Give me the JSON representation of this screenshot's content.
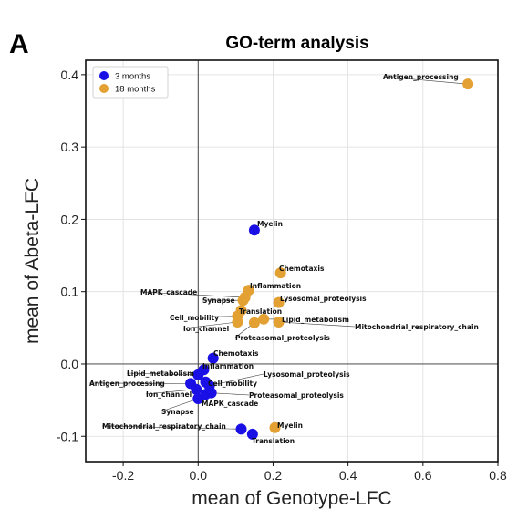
{
  "panel_letter": "A",
  "chart_data": {
    "type": "scatter",
    "title": "GO-term analysis",
    "xlabel": "mean of Genotype-LFC",
    "ylabel": "mean of Abeta-LFC",
    "xlim": [
      -0.3,
      0.8
    ],
    "ylim": [
      -0.135,
      0.42
    ],
    "xticks": [
      -0.2,
      0.0,
      0.2,
      0.4,
      0.6,
      0.8
    ],
    "yticks": [
      -0.1,
      0.0,
      0.1,
      0.2,
      0.3,
      0.4
    ],
    "xtick_labels": [
      "-0.2",
      "0.0",
      "0.2",
      "0.4",
      "0.6",
      "0.8"
    ],
    "ytick_labels": [
      "-0.1",
      "0.0",
      "0.1",
      "0.2",
      "0.3",
      "0.4"
    ],
    "grid": true,
    "zero_lines": true,
    "legend_position": "top-left",
    "series": [
      {
        "name": "3 months",
        "color": "#1a10e6",
        "points": [
          {
            "label": "Myelin",
            "x": 0.15,
            "y": 0.185
          },
          {
            "label": "Chemotaxis",
            "x": 0.04,
            "y": 0.008
          },
          {
            "label": "Inflammation",
            "x": 0.015,
            "y": -0.008
          },
          {
            "label": "Lipid_metabolism",
            "x": 0.0,
            "y": -0.015
          },
          {
            "label": "Antigen_processing",
            "x": -0.02,
            "y": -0.027
          },
          {
            "label": "Cell_mobility",
            "x": 0.02,
            "y": -0.025
          },
          {
            "label": "Lysosomal_proteolysis",
            "x": 0.03,
            "y": -0.03
          },
          {
            "label": "Ion_channel",
            "x": -0.005,
            "y": -0.035
          },
          {
            "label": "Proteasomal_proteolysis",
            "x": 0.035,
            "y": -0.04
          },
          {
            "label": "MAPK_cascade",
            "x": 0.02,
            "y": -0.042
          },
          {
            "label": "Synapse",
            "x": 0.0,
            "y": -0.048
          },
          {
            "label": "Mitochondrial_respiratory_chain",
            "x": 0.115,
            "y": -0.09
          },
          {
            "label": "Translation",
            "x": 0.145,
            "y": -0.097
          }
        ]
      },
      {
        "name": "18 months",
        "color": "#e2a132",
        "points": [
          {
            "label": "Antigen_processing",
            "x": 0.72,
            "y": 0.387
          },
          {
            "label": "Chemotaxis",
            "x": 0.22,
            "y": 0.126
          },
          {
            "label": "Inflammation",
            "x": 0.135,
            "y": 0.102
          },
          {
            "label": "MAPK_cascade",
            "x": 0.125,
            "y": 0.092
          },
          {
            "label": "Synapse",
            "x": 0.12,
            "y": 0.088
          },
          {
            "label": "Lysosomal_proteolysis",
            "x": 0.215,
            "y": 0.085
          },
          {
            "label": "Translation",
            "x": 0.115,
            "y": 0.074
          },
          {
            "label": "Cell_mobility",
            "x": 0.105,
            "y": 0.066
          },
          {
            "label": "Ion_channel",
            "x": 0.105,
            "y": 0.058
          },
          {
            "label": "Lipid_metabolism",
            "x": 0.175,
            "y": 0.062
          },
          {
            "label": "Mitochondrial_respiratory_chain",
            "x": 0.215,
            "y": 0.058
          },
          {
            "label": "Proteasomal_proteolysis",
            "x": 0.15,
            "y": 0.057
          },
          {
            "label": "Myelin",
            "x": 0.205,
            "y": -0.088
          }
        ]
      }
    ]
  }
}
